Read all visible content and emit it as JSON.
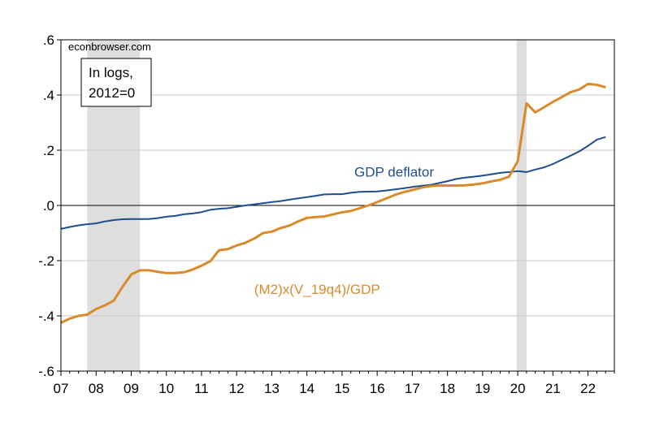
{
  "chart_data": {
    "type": "line",
    "source_label": "econbrowser.com",
    "note_lines": [
      "In logs,",
      "2012=0"
    ],
    "xlim": [
      2007.0,
      2022.75
    ],
    "ylim": [
      -0.6,
      0.6
    ],
    "yticks": [
      {
        "value": 0.6,
        "label": ".6"
      },
      {
        "value": 0.4,
        "label": ".4"
      },
      {
        "value": 0.2,
        "label": ".2"
      },
      {
        "value": 0.0,
        "label": ".0"
      },
      {
        "value": -0.2,
        "label": "-.2"
      },
      {
        "value": -0.4,
        "label": "-.4"
      },
      {
        "value": -0.6,
        "label": "-.6"
      }
    ],
    "xticks": [
      {
        "value": 2007,
        "label": "07"
      },
      {
        "value": 2008,
        "label": "08"
      },
      {
        "value": 2009,
        "label": "09"
      },
      {
        "value": 2010,
        "label": "10"
      },
      {
        "value": 2011,
        "label": "11"
      },
      {
        "value": 2012,
        "label": "12"
      },
      {
        "value": 2013,
        "label": "13"
      },
      {
        "value": 2014,
        "label": "14"
      },
      {
        "value": 2015,
        "label": "15"
      },
      {
        "value": 2016,
        "label": "16"
      },
      {
        "value": 2017,
        "label": "17"
      },
      {
        "value": 2018,
        "label": "18"
      },
      {
        "value": 2019,
        "label": "19"
      },
      {
        "value": 2020,
        "label": "20"
      },
      {
        "value": 2021,
        "label": "21"
      },
      {
        "value": 2022,
        "label": "22"
      }
    ],
    "recessions": [
      [
        2007.75,
        2009.25
      ],
      [
        2019.97,
        2020.25
      ]
    ],
    "grid": "horizontal",
    "series": [
      {
        "name": "GDP deflator",
        "color": "#1f4e8c",
        "x": [
          2007.0,
          2007.25,
          2007.5,
          2007.75,
          2008.0,
          2008.25,
          2008.5,
          2008.75,
          2009.0,
          2009.25,
          2009.5,
          2009.75,
          2010.0,
          2010.25,
          2010.5,
          2010.75,
          2011.0,
          2011.25,
          2011.5,
          2011.75,
          2012.0,
          2012.25,
          2012.5,
          2012.75,
          2013.0,
          2013.25,
          2013.5,
          2013.75,
          2014.0,
          2014.25,
          2014.5,
          2014.75,
          2015.0,
          2015.25,
          2015.5,
          2015.75,
          2016.0,
          2016.25,
          2016.5,
          2016.75,
          2017.0,
          2017.25,
          2017.5,
          2017.75,
          2018.0,
          2018.25,
          2018.5,
          2018.75,
          2019.0,
          2019.25,
          2019.5,
          2019.75,
          2020.0,
          2020.25,
          2020.5,
          2020.75,
          2021.0,
          2021.25,
          2021.5,
          2021.75,
          2022.0,
          2022.25,
          2022.5
        ],
        "values": [
          -0.085,
          -0.078,
          -0.072,
          -0.068,
          -0.065,
          -0.058,
          -0.053,
          -0.05,
          -0.049,
          -0.049,
          -0.049,
          -0.046,
          -0.041,
          -0.038,
          -0.032,
          -0.029,
          -0.024,
          -0.016,
          -0.012,
          -0.01,
          -0.005,
          0.0,
          0.004,
          0.008,
          0.012,
          0.016,
          0.021,
          0.026,
          0.03,
          0.035,
          0.04,
          0.041,
          0.041,
          0.046,
          0.049,
          0.05,
          0.051,
          0.054,
          0.058,
          0.062,
          0.067,
          0.071,
          0.074,
          0.081,
          0.088,
          0.096,
          0.101,
          0.104,
          0.108,
          0.113,
          0.118,
          0.121,
          0.124,
          0.121,
          0.13,
          0.138,
          0.15,
          0.165,
          0.18,
          0.196,
          0.216,
          0.238,
          0.248
        ]
      },
      {
        "name": "(M2)x(V_19q4)/GDP",
        "color": "#d98a2b",
        "x": [
          2007.0,
          2007.25,
          2007.5,
          2007.75,
          2008.0,
          2008.25,
          2008.5,
          2008.75,
          2009.0,
          2009.25,
          2009.5,
          2009.75,
          2010.0,
          2010.25,
          2010.5,
          2010.75,
          2011.0,
          2011.25,
          2011.5,
          2011.75,
          2012.0,
          2012.25,
          2012.5,
          2012.75,
          2013.0,
          2013.25,
          2013.5,
          2013.75,
          2014.0,
          2014.25,
          2014.5,
          2014.75,
          2015.0,
          2015.25,
          2015.5,
          2015.75,
          2016.0,
          2016.25,
          2016.5,
          2016.75,
          2017.0,
          2017.25,
          2017.5,
          2017.75,
          2018.0,
          2018.25,
          2018.5,
          2018.75,
          2019.0,
          2019.25,
          2019.5,
          2019.75,
          2020.0,
          2020.25,
          2020.5,
          2020.75,
          2021.0,
          2021.25,
          2021.5,
          2021.75,
          2022.0,
          2022.25,
          2022.5
        ],
        "values": [
          -0.425,
          -0.41,
          -0.4,
          -0.395,
          -0.375,
          -0.362,
          -0.345,
          -0.295,
          -0.25,
          -0.235,
          -0.235,
          -0.24,
          -0.245,
          -0.245,
          -0.242,
          -0.232,
          -0.218,
          -0.202,
          -0.162,
          -0.158,
          -0.145,
          -0.135,
          -0.12,
          -0.1,
          -0.095,
          -0.082,
          -0.073,
          -0.058,
          -0.045,
          -0.042,
          -0.04,
          -0.032,
          -0.025,
          -0.02,
          -0.01,
          0.0,
          0.012,
          0.025,
          0.038,
          0.048,
          0.056,
          0.064,
          0.07,
          0.072,
          0.072,
          0.072,
          0.073,
          0.076,
          0.08,
          0.087,
          0.093,
          0.104,
          0.16,
          0.37,
          0.337,
          0.356,
          0.375,
          0.392,
          0.41,
          0.42,
          0.44,
          0.437,
          0.428
        ]
      }
    ],
    "annotations": [
      {
        "series": 0,
        "text": "GDP deflator",
        "at_x": 2015.35,
        "at_y": 0.105
      },
      {
        "series": 1,
        "text": "(M2)x(V_19q4)/GDP",
        "at_x": 2012.5,
        "at_y": -0.32
      }
    ]
  }
}
